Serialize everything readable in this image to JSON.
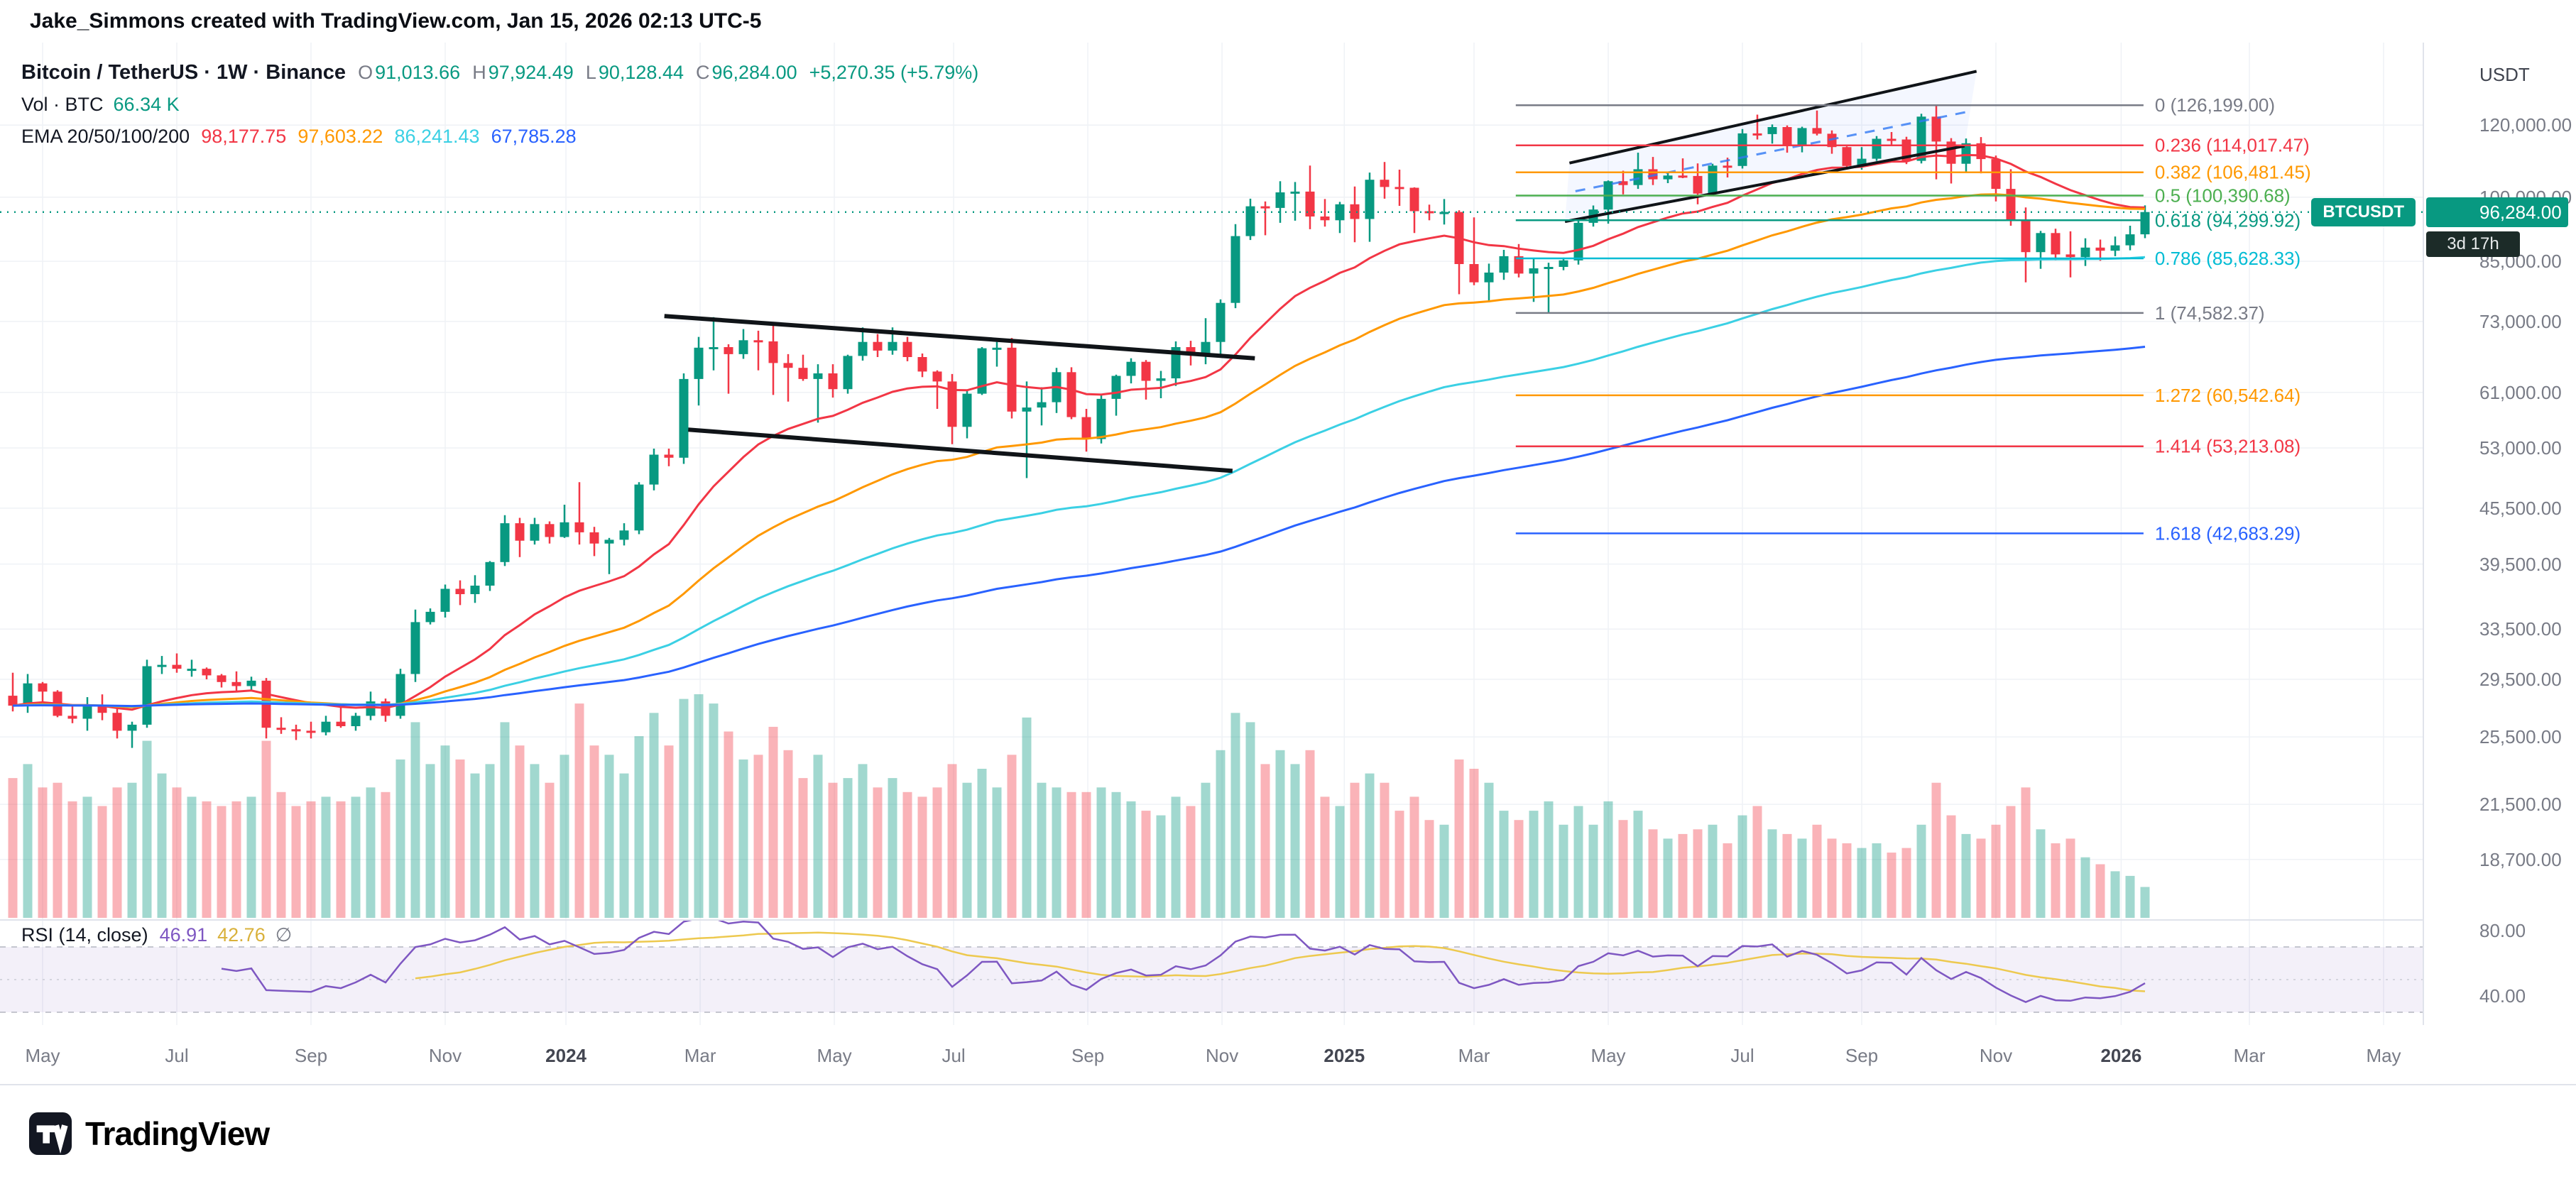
{
  "attribution": "Jake_Simmons created with TradingView.com, Jan 15, 2026 02:13 UTC-5",
  "legend": {
    "symbol": "Bitcoin / TetherUS · 1W · Binance",
    "ohlc": [
      {
        "k": "O",
        "v": "91,013.66"
      },
      {
        "k": "H",
        "v": "97,924.49"
      },
      {
        "k": "L",
        "v": "90,128.44"
      },
      {
        "k": "C",
        "v": "96,284.00"
      }
    ],
    "change": "+5,270.35 (+5.79%)",
    "volume_label": "Vol · BTC",
    "volume_value": "66.34 K",
    "ema_label": "EMA 20/50/100/200",
    "ema_values": [
      "98,177.75",
      "97,603.22",
      "86,241.43",
      "67,785.28"
    ]
  },
  "rsi_legend": {
    "title": "RSI (14, close)",
    "rsi_value": "46.91",
    "ma_value": "42.76",
    "empty": "∅"
  },
  "price_axis": {
    "currency": "USDT",
    "ticks": [
      {
        "v": 120000,
        "label": "120,000.00"
      },
      {
        "v": 100000,
        "label": "100,000.00"
      },
      {
        "v": 85000,
        "label": "85,000.00"
      },
      {
        "v": 73000,
        "label": "73,000.00"
      },
      {
        "v": 61000,
        "label": "61,000.00"
      },
      {
        "v": 53000,
        "label": "53,000.00"
      },
      {
        "v": 45500,
        "label": "45,500.00"
      },
      {
        "v": 39500,
        "label": "39,500.00"
      },
      {
        "v": 33500,
        "label": "33,500.00"
      },
      {
        "v": 29500,
        "label": "29,500.00"
      },
      {
        "v": 25500,
        "label": "25,500.00"
      },
      {
        "v": 21500,
        "label": "21,500.00"
      },
      {
        "v": 18700,
        "label": "18,700.00"
      }
    ],
    "rsi_ticks": [
      {
        "v": 80,
        "label": "80.00"
      },
      {
        "v": 40,
        "label": "40.00"
      }
    ],
    "current": {
      "symbol": "BTCUSDT",
      "price": "96,284.00",
      "countdown": "3d 17h",
      "color": "#089981"
    }
  },
  "time_axis": [
    {
      "label": "May",
      "i": 2.0
    },
    {
      "label": "Jul",
      "i": 11.0
    },
    {
      "label": "Sep",
      "i": 20.0
    },
    {
      "label": "Nov",
      "i": 29.0
    },
    {
      "label": "2024",
      "i": 37.1,
      "bold": true
    },
    {
      "label": "Mar",
      "i": 46.1
    },
    {
      "label": "May",
      "i": 55.1
    },
    {
      "label": "Jul",
      "i": 63.1
    },
    {
      "label": "Sep",
      "i": 72.1
    },
    {
      "label": "Nov",
      "i": 81.1
    },
    {
      "label": "2025",
      "i": 89.3,
      "bold": true
    },
    {
      "label": "Mar",
      "i": 98.0
    },
    {
      "label": "May",
      "i": 107.0
    },
    {
      "label": "Jul",
      "i": 116.0
    },
    {
      "label": "Sep",
      "i": 124.0
    },
    {
      "label": "Nov",
      "i": 133.0
    },
    {
      "label": "2026",
      "i": 141.4,
      "bold": true
    },
    {
      "label": "Mar",
      "i": 150.0
    },
    {
      "label": "May",
      "i": 159.0
    }
  ],
  "footer": {
    "brand": "TradingView"
  },
  "chart_data": {
    "type": "candlestick",
    "symbol": "BTCUSDT",
    "exchange": "Binance",
    "interval": "1W",
    "price_scale": "log",
    "volume_unit": "K BTC",
    "candles": [
      [
        28300,
        30000,
        27200,
        27600
      ],
      [
        27600,
        29900,
        27100,
        29200
      ],
      [
        29200,
        29300,
        27700,
        28600
      ],
      [
        28600,
        28700,
        26800,
        26900
      ],
      [
        26900,
        27700,
        26400,
        26700
      ],
      [
        26700,
        28200,
        25900,
        27600
      ],
      [
        27600,
        28400,
        26600,
        27100
      ],
      [
        27100,
        27400,
        25400,
        25900
      ],
      [
        25900,
        26500,
        24800,
        26300
      ],
      [
        26300,
        31000,
        26100,
        30500
      ],
      [
        30500,
        31300,
        29900,
        30600
      ],
      [
        30600,
        31500,
        30000,
        30300
      ],
      [
        30300,
        31000,
        29700,
        30300
      ],
      [
        30300,
        30400,
        29500,
        29800
      ],
      [
        29800,
        29900,
        28900,
        29300
      ],
      [
        29300,
        30100,
        28600,
        29000
      ],
      [
        29000,
        29700,
        28700,
        29400
      ],
      [
        29400,
        29600,
        25400,
        26100
      ],
      [
        26100,
        26800,
        25700,
        26000
      ],
      [
        26000,
        26300,
        25300,
        25900
      ],
      [
        25900,
        26500,
        25400,
        25800
      ],
      [
        25800,
        26900,
        25600,
        26500
      ],
      [
        26500,
        27500,
        26100,
        26200
      ],
      [
        26200,
        27100,
        25900,
        26900
      ],
      [
        26900,
        28600,
        26600,
        27900
      ],
      [
        27900,
        28100,
        26500,
        26900
      ],
      [
        26900,
        30300,
        26700,
        29900
      ],
      [
        29900,
        35200,
        29300,
        34100
      ],
      [
        34100,
        35300,
        33900,
        35000
      ],
      [
        35000,
        37500,
        34500,
        37100
      ],
      [
        37100,
        37900,
        35600,
        36600
      ],
      [
        36600,
        38400,
        35800,
        37400
      ],
      [
        37400,
        39800,
        36900,
        39700
      ],
      [
        39700,
        44700,
        39300,
        43800
      ],
      [
        43800,
        44400,
        40200,
        41900
      ],
      [
        41900,
        44400,
        41500,
        43700
      ],
      [
        43700,
        44000,
        41600,
        42300
      ],
      [
        42300,
        45900,
        42200,
        43900
      ],
      [
        43900,
        48600,
        41500,
        42800
      ],
      [
        42800,
        43400,
        40300,
        41600
      ],
      [
        41600,
        42200,
        38500,
        42000
      ],
      [
        42000,
        43800,
        41400,
        43000
      ],
      [
        43000,
        48600,
        42600,
        48300
      ],
      [
        48300,
        52900,
        47600,
        52100
      ],
      [
        52100,
        52900,
        50600,
        51700
      ],
      [
        51700,
        64000,
        50900,
        63100
      ],
      [
        63100,
        70200,
        59000,
        68300
      ],
      [
        68300,
        73800,
        64500,
        68400
      ],
      [
        68400,
        68900,
        60800,
        67200
      ],
      [
        67200,
        71600,
        66400,
        69600
      ],
      [
        69600,
        71300,
        64500,
        69400
      ],
      [
        69400,
        72800,
        60600,
        65700
      ],
      [
        65700,
        67200,
        59600,
        64900
      ],
      [
        64900,
        67100,
        62800,
        63100
      ],
      [
        63100,
        65500,
        56500,
        64000
      ],
      [
        64000,
        65500,
        60200,
        61500
      ],
      [
        61500,
        67100,
        60800,
        66900
      ],
      [
        66900,
        71900,
        66100,
        69300
      ],
      [
        69300,
        70700,
        66700,
        67800
      ],
      [
        67800,
        71900,
        67100,
        69300
      ],
      [
        69300,
        70200,
        66000,
        66700
      ],
      [
        66700,
        67300,
        63400,
        64300
      ],
      [
        64300,
        64500,
        58500,
        62700
      ],
      [
        62700,
        63900,
        53500,
        55900
      ],
      [
        55900,
        61300,
        54300,
        60800
      ],
      [
        60800,
        68400,
        60600,
        68200
      ],
      [
        68200,
        69300,
        65100,
        68300
      ],
      [
        68300,
        70000,
        57100,
        58100
      ],
      [
        58100,
        62700,
        49100,
        58700
      ],
      [
        58700,
        61800,
        56100,
        59500
      ],
      [
        59500,
        64900,
        57900,
        64200
      ],
      [
        64200,
        65000,
        57000,
        57300
      ],
      [
        57300,
        58500,
        52500,
        54200
      ],
      [
        54200,
        60600,
        53600,
        60000
      ],
      [
        60000,
        63800,
        57500,
        63600
      ],
      [
        63600,
        66500,
        62400,
        65900
      ],
      [
        65900,
        66200,
        59900,
        62800
      ],
      [
        62800,
        64400,
        60100,
        63200
      ],
      [
        63200,
        69400,
        62000,
        68400
      ],
      [
        68400,
        69500,
        65300,
        67000
      ],
      [
        67000,
        73600,
        65500,
        69300
      ],
      [
        69300,
        77200,
        66800,
        76500
      ],
      [
        76500,
        93400,
        75500,
        90600
      ],
      [
        90600,
        99600,
        89700,
        97700
      ],
      [
        97700,
        98900,
        90800,
        97300
      ],
      [
        97300,
        104100,
        93700,
        101200
      ],
      [
        101200,
        103900,
        94200,
        101400
      ],
      [
        101400,
        108300,
        92200,
        95200
      ],
      [
        95200,
        99500,
        92800,
        94300
      ],
      [
        94300,
        98800,
        91300,
        98200
      ],
      [
        98200,
        102700,
        89200,
        94600
      ],
      [
        94600,
        106400,
        89300,
        104500
      ],
      [
        104500,
        109300,
        99600,
        102600
      ],
      [
        102600,
        107200,
        97800,
        102400
      ],
      [
        102400,
        102500,
        91300,
        96500
      ],
      [
        96500,
        98100,
        94300,
        96100
      ],
      [
        96100,
        99500,
        93300,
        96300
      ],
      [
        96300,
        96700,
        78200,
        84400
      ],
      [
        84400,
        95000,
        80000,
        80600
      ],
      [
        80600,
        84500,
        76600,
        82600
      ],
      [
        82600,
        87500,
        81100,
        86100
      ],
      [
        86100,
        88800,
        81600,
        82400
      ],
      [
        82400,
        85500,
        76700,
        83500
      ],
      [
        83500,
        84700,
        74500,
        83800
      ],
      [
        83800,
        85800,
        83100,
        85200
      ],
      [
        85200,
        94700,
        84300,
        93700
      ],
      [
        93700,
        97900,
        92800,
        96900
      ],
      [
        96900,
        104300,
        93500,
        104100
      ],
      [
        104100,
        106900,
        100700,
        103100
      ],
      [
        103100,
        111900,
        102100,
        107300
      ],
      [
        107300,
        110700,
        103100,
        104600
      ],
      [
        104600,
        106600,
        103600,
        105600
      ],
      [
        105600,
        110300,
        104900,
        105500
      ],
      [
        105500,
        108900,
        98200,
        100900
      ],
      [
        100900,
        108800,
        100600,
        108300
      ],
      [
        108300,
        110500,
        105100,
        108200
      ],
      [
        108200,
        118800,
        107500,
        117500
      ],
      [
        117500,
        123200,
        115700,
        117300
      ],
      [
        117300,
        120200,
        114500,
        119400
      ],
      [
        119400,
        119900,
        111900,
        114200
      ],
      [
        114200,
        119500,
        112000,
        119100
      ],
      [
        119100,
        124500,
        116900,
        117400
      ],
      [
        117400,
        118400,
        111600,
        113500
      ],
      [
        113500,
        113700,
        107300,
        108200
      ],
      [
        108200,
        113500,
        107200,
        110200
      ],
      [
        110200,
        116700,
        109600,
        115900
      ],
      [
        115900,
        117900,
        114200,
        115700
      ],
      [
        115700,
        116500,
        108700,
        109600
      ],
      [
        109600,
        123500,
        108900,
        122600
      ],
      [
        122600,
        126199,
        104600,
        115100
      ],
      [
        115100,
        116100,
        103500,
        108800
      ],
      [
        108800,
        116000,
        106500,
        114600
      ],
      [
        114600,
        116400,
        106200,
        110100
      ],
      [
        110100,
        111100,
        98900,
        102100
      ],
      [
        102100,
        107300,
        93000,
        94400
      ],
      [
        94400,
        97400,
        80600,
        87000
      ],
      [
        87000,
        91800,
        83400,
        91300
      ],
      [
        91300,
        92300,
        85200,
        86500
      ],
      [
        86500,
        91700,
        81600,
        85900
      ],
      [
        85900,
        90100,
        84000,
        88000
      ],
      [
        88000,
        89800,
        85100,
        87300
      ],
      [
        87300,
        90500,
        86100,
        88500
      ],
      [
        88500,
        93000,
        87400,
        91000
      ],
      [
        91013.66,
        97924.49,
        90128.44,
        96284
      ]
    ],
    "volumes_k": [
      300,
      330,
      280,
      290,
      250,
      260,
      240,
      280,
      290,
      380,
      310,
      280,
      260,
      250,
      240,
      250,
      260,
      380,
      270,
      240,
      250,
      260,
      250,
      260,
      280,
      270,
      340,
      420,
      330,
      370,
      340,
      310,
      330,
      420,
      370,
      330,
      290,
      350,
      460,
      370,
      350,
      310,
      390,
      440,
      370,
      470,
      480,
      460,
      400,
      340,
      350,
      410,
      360,
      300,
      350,
      290,
      300,
      330,
      280,
      300,
      270,
      260,
      280,
      330,
      290,
      320,
      280,
      350,
      430,
      290,
      280,
      270,
      270,
      280,
      270,
      250,
      230,
      220,
      260,
      240,
      290,
      360,
      440,
      420,
      330,
      360,
      330,
      360,
      260,
      240,
      290,
      310,
      290,
      230,
      260,
      210,
      200,
      340,
      320,
      290,
      230,
      210,
      230,
      250,
      200,
      240,
      200,
      250,
      210,
      230,
      190,
      170,
      180,
      190,
      200,
      160,
      220,
      240,
      190,
      180,
      170,
      200,
      170,
      160,
      150,
      160,
      140,
      150,
      200,
      290,
      220,
      180,
      170,
      200,
      240,
      280,
      190,
      160,
      170,
      130,
      115,
      100,
      90,
      66.34
    ],
    "ema": {
      "periods": [
        20,
        50,
        100,
        200
      ],
      "colors": [
        "#f23645",
        "#ff9800",
        "#3bd0e4",
        "#2962ff"
      ]
    },
    "rsi": {
      "period": 14,
      "source": "close",
      "color": "#7e57c2",
      "ma_color": "#edc94f"
    },
    "annotations": {
      "down_channel": {
        "upper": [
          43.7,
          74000,
          83.3,
          66500
        ],
        "lower": [
          45.3,
          55500,
          81.8,
          50000
        ]
      },
      "rising_wedge": {
        "upper": [
          104.4,
          109000,
          131.7,
          137500
        ],
        "lower": [
          104.1,
          94000,
          130.9,
          113800
        ],
        "median": [
          104.8,
          101500,
          131.3,
          124300
        ]
      },
      "fib": {
        "start_i": 100.8,
        "end_i": 142.9,
        "levels": [
          {
            "label": "0 (126,199.00)",
            "price": 126199.0,
            "color": "#787b86"
          },
          {
            "label": "0.236 (114,017.47)",
            "price": 114017.47,
            "color": "#f23645"
          },
          {
            "label": "0.382 (106,481.45)",
            "price": 106481.45,
            "color": "#ff9800"
          },
          {
            "label": "0.5 (100,390.68)",
            "price": 100390.68,
            "color": "#4caf50"
          },
          {
            "label": "0.618 (94,299.92)",
            "price": 94299.92,
            "color": "#089981"
          },
          {
            "label": "0.786 (85,628.33)",
            "price": 85628.33,
            "color": "#00bcd4"
          },
          {
            "label": "1 (74,582.37)",
            "price": 74582.37,
            "color": "#787b86"
          },
          {
            "label": "1.272 (60,542.64)",
            "price": 60542.64,
            "color": "#ff9800"
          },
          {
            "label": "1.414 (53,213.08)",
            "price": 53213.08,
            "color": "#f23645"
          },
          {
            "label": "1.618 (42,683.29)",
            "price": 42683.29,
            "color": "#2962ff"
          }
        ]
      }
    }
  }
}
